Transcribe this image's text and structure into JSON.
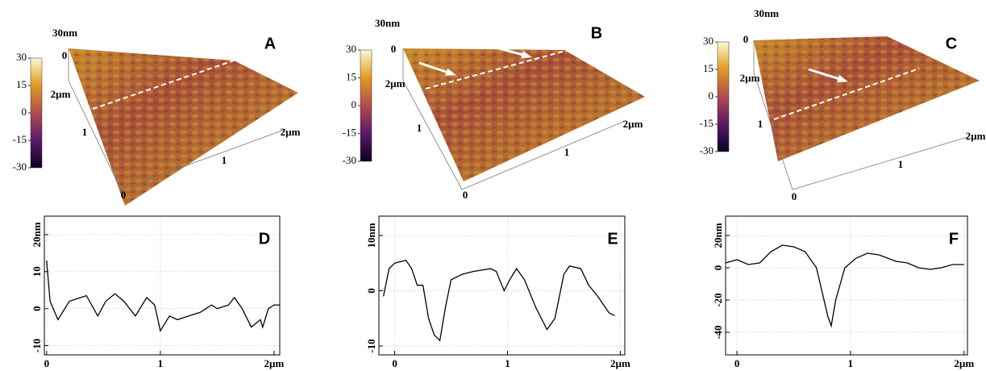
{
  "chart_data": [
    {
      "type": "surface",
      "panel": "A",
      "z_label": "30nm",
      "axis_labels": [
        "0",
        "2µm",
        "1",
        "0",
        "1",
        "2µm"
      ],
      "clim": [
        -30,
        30
      ],
      "cticks": [
        30,
        15,
        0,
        -15,
        -30
      ]
    },
    {
      "type": "surface",
      "panel": "B",
      "z_label": "30nm",
      "axis_labels": [
        "0",
        "2µm",
        "1",
        "0",
        "1",
        "2µm"
      ],
      "clim": [
        -30,
        30
      ],
      "cticks": [
        30,
        15,
        0,
        -15,
        -30
      ]
    },
    {
      "type": "surface",
      "panel": "C",
      "z_label": "30nm",
      "axis_labels": [
        "0",
        "2µm",
        "1",
        "0",
        "1",
        "2µm"
      ],
      "clim": [
        -30,
        30
      ],
      "cticks": [
        30,
        15,
        0,
        -15,
        -30
      ]
    },
    {
      "type": "line",
      "panel": "D",
      "grid": true,
      "color": "#000000",
      "x": [
        0,
        0.03,
        0.1,
        0.2,
        0.3,
        0.35,
        0.45,
        0.52,
        0.6,
        0.68,
        0.78,
        0.88,
        0.95,
        1.0,
        1.08,
        1.15,
        1.25,
        1.35,
        1.45,
        1.5,
        1.6,
        1.65,
        1.72,
        1.8,
        1.88,
        1.9,
        1.95,
        2.0,
        2.05
      ],
      "values": [
        13,
        2,
        -3,
        2,
        3,
        3.5,
        -2,
        2,
        4,
        2,
        -2,
        3,
        1,
        -6,
        -2,
        -3,
        -2,
        -1,
        1,
        0,
        1,
        3,
        0,
        -5,
        -3,
        -5,
        0,
        1,
        1
      ],
      "xlim": [
        -0.02,
        2.05
      ],
      "ylim": [
        -12.5,
        25
      ],
      "xticks": [
        0,
        1,
        {
          "value": 2,
          "label": "2µm"
        }
      ],
      "yticks": [
        -10,
        0,
        10,
        {
          "value": 20,
          "label": "20nm"
        }
      ]
    },
    {
      "type": "line",
      "panel": "E",
      "grid": true,
      "color": "#000000",
      "x": [
        -0.1,
        -0.05,
        0,
        0.1,
        0.15,
        0.2,
        0.25,
        0.3,
        0.35,
        0.4,
        0.45,
        0.5,
        0.6,
        0.7,
        0.85,
        0.9,
        0.97,
        1.02,
        1.08,
        1.15,
        1.25,
        1.35,
        1.42,
        1.5,
        1.55,
        1.65,
        1.72,
        1.8,
        1.9,
        1.95
      ],
      "values": [
        -1,
        4,
        5,
        5.5,
        4,
        1,
        1,
        -5,
        -8,
        -9,
        -3,
        2,
        3,
        3.5,
        4,
        3.5,
        0,
        2,
        4,
        2,
        -3,
        -7,
        -5,
        3,
        4.5,
        4,
        1,
        -1,
        -4,
        -4.5
      ],
      "xlim": [
        -0.14,
        2.04
      ],
      "ylim": [
        -11.6,
        13.5
      ],
      "xticks": [
        0,
        1,
        {
          "value": 2,
          "label": "2µm"
        }
      ],
      "yticks": [
        -10,
        0,
        {
          "value": 10,
          "label": "10nm"
        }
      ]
    },
    {
      "type": "line",
      "panel": "F",
      "grid": true,
      "color": "#000000",
      "x": [
        -0.1,
        0,
        0.1,
        0.2,
        0.3,
        0.4,
        0.5,
        0.6,
        0.7,
        0.75,
        0.8,
        0.83,
        0.87,
        0.95,
        1.05,
        1.15,
        1.25,
        1.4,
        1.5,
        1.6,
        1.7,
        1.8,
        1.9,
        2.0
      ],
      "values": [
        3,
        5,
        2,
        3,
        10,
        14,
        13,
        10,
        0,
        -15,
        -30,
        -36,
        -20,
        0,
        6,
        9,
        8,
        4,
        3,
        0,
        -1,
        0,
        2,
        2
      ],
      "xlim": [
        -0.1,
        2.03
      ],
      "ylim": [
        -54,
        32
      ],
      "xticks": [
        0,
        1,
        {
          "value": 2,
          "label": "2µm"
        }
      ],
      "yticks": [
        -40,
        -20,
        0,
        {
          "value": 20,
          "label": "20nm"
        }
      ]
    }
  ]
}
